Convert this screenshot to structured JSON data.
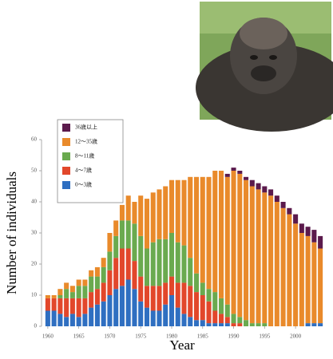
{
  "chart_data": {
    "type": "stacked_bar",
    "y_label": "Number of individuals",
    "x_label": "Year",
    "x": [
      1960,
      1961,
      1962,
      1963,
      1964,
      1965,
      1966,
      1967,
      1968,
      1969,
      1970,
      1971,
      1972,
      1973,
      1974,
      1975,
      1976,
      1977,
      1978,
      1979,
      1980,
      1981,
      1982,
      1983,
      1984,
      1985,
      1986,
      1987,
      1988,
      1989,
      1990,
      1991,
      1992,
      1993,
      1994,
      1995,
      1996,
      1997,
      1998,
      1999,
      2000,
      2001,
      2002,
      2003,
      2004
    ],
    "series": [
      {
        "name": "0～3歳",
        "color": "#2f6fc1",
        "values": [
          5,
          5,
          4,
          3,
          4,
          3,
          4,
          6,
          7,
          8,
          10,
          12,
          13,
          15,
          12,
          8,
          6,
          5,
          5,
          7,
          10,
          6,
          4,
          3,
          2,
          2,
          1,
          1,
          1,
          1,
          0,
          0,
          0,
          0,
          0,
          0,
          0,
          0,
          0,
          0,
          0,
          0,
          1,
          1,
          1
        ]
      },
      {
        "name": "4～7歳",
        "color": "#e2472b",
        "values": [
          4,
          4,
          5,
          6,
          5,
          6,
          5,
          5,
          5,
          6,
          8,
          10,
          12,
          10,
          9,
          8,
          7,
          8,
          8,
          7,
          6,
          8,
          10,
          10,
          9,
          8,
          7,
          4,
          3,
          2,
          1,
          1,
          0,
          0,
          0,
          0,
          0,
          0,
          0,
          0,
          0,
          0,
          0,
          0,
          0
        ]
      },
      {
        "name": "8～11歳",
        "color": "#6aaa4f",
        "values": [
          0,
          0,
          1,
          3,
          2,
          4,
          4,
          5,
          4,
          5,
          6,
          7,
          9,
          9,
          12,
          13,
          12,
          14,
          15,
          14,
          14,
          13,
          12,
          9,
          6,
          4,
          4,
          6,
          5,
          4,
          3,
          2,
          2,
          1,
          1,
          1,
          0,
          0,
          0,
          0,
          0,
          0,
          0,
          0,
          0
        ]
      },
      {
        "name": "12～35歳",
        "color": "#e98a2b",
        "values": [
          1,
          1,
          2,
          2,
          2,
          2,
          2,
          2,
          3,
          3,
          6,
          5,
          5,
          8,
          7,
          13,
          16,
          16,
          16,
          17,
          17,
          20,
          21,
          26,
          31,
          34,
          36,
          39,
          41,
          41,
          46,
          46,
          45,
          44,
          43,
          42,
          42,
          40,
          38,
          36,
          33,
          30,
          28,
          26,
          24
        ]
      },
      {
        "name": "36歳以上",
        "color": "#5b1a4c",
        "values": [
          0,
          0,
          0,
          0,
          0,
          0,
          0,
          0,
          0,
          0,
          0,
          0,
          0,
          0,
          0,
          0,
          0,
          0,
          0,
          0,
          0,
          0,
          0,
          0,
          0,
          0,
          0,
          0,
          0,
          1,
          1,
          1,
          1,
          2,
          2,
          2,
          2,
          2,
          2,
          2,
          3,
          3,
          3,
          4,
          4
        ]
      }
    ],
    "xlim": [
      1959.5,
      2004.5
    ],
    "xticks": [
      1960,
      1965,
      1970,
      1975,
      1980,
      1985,
      1990,
      1995,
      2000
    ],
    "ylim": [
      0,
      60
    ],
    "yticks": [
      0,
      10,
      20,
      30,
      40,
      50,
      60
    ],
    "legend": "upper-left"
  }
}
